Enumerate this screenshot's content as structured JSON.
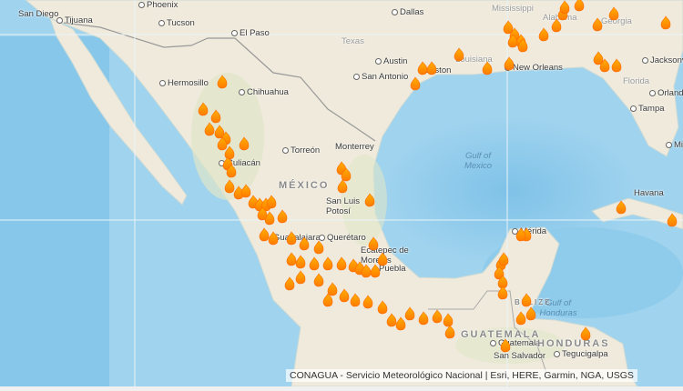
{
  "map": {
    "cities": [
      "San Diego",
      "Tijuana",
      "Tucson",
      "El Paso",
      "Dallas",
      "Austin",
      "San Antonio",
      "Houston",
      "New Orleans",
      "Jacksonville",
      "Orlando",
      "Tampa",
      "Miami",
      "Hermosillo",
      "Chihuahua",
      "Torreón",
      "Monterrey",
      "Culiacán",
      "San Luis Potosí",
      "Guadalajara",
      "Querétaro",
      "Ecatepec de Morelos",
      "Puebla",
      "Mérida",
      "Havana",
      "Guatemala",
      "San Salvador",
      "Tegucigalpa",
      "Phoenix"
    ],
    "countries": [
      "MÉXICO",
      "GUATEMALA",
      "HONDURAS",
      "BELIZE"
    ],
    "states": [
      "Texas",
      "Mississippi",
      "Alabama",
      "Georgia",
      "Louisiana",
      "Florida"
    ],
    "water": [
      "Gulf of Mexico",
      "Gulf of Honduras"
    ],
    "marker_icon": "fire-icon",
    "marker_color": "#ff7a00",
    "land_color": "#efeadb",
    "ocean_color": "#9fd3ee"
  },
  "attribution": "CONAGUA - Servicio Meteorológico Nacional | Esri, HERE, Garmin, NGA, USGS"
}
